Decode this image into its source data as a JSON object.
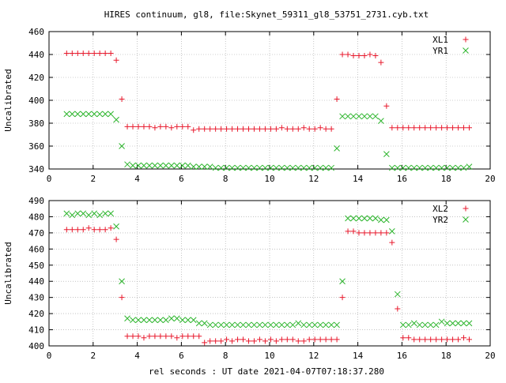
{
  "title": "HIRES continuum, gl8, file:Skynet_59311_gl8_53751_2731.cyb.txt",
  "xlabel": "rel seconds : UT date 2021-04-07T07:18:37.280",
  "colors": {
    "red": "#e8192c",
    "green": "#2db52d",
    "axis": "#000000",
    "grid": "#a0a0a0"
  },
  "chart_data": [
    {
      "type": "scatter",
      "ylabel": "Uncalibrated",
      "xlim": [
        0,
        20
      ],
      "ylim": [
        340,
        460
      ],
      "xticks": [
        0,
        2,
        4,
        6,
        8,
        10,
        12,
        14,
        16,
        18,
        20
      ],
      "yticks": [
        340,
        360,
        380,
        400,
        420,
        440,
        460
      ],
      "grid": true,
      "legend_position": "top-right",
      "series": [
        {
          "name": "XL1",
          "color": "red",
          "marker": "plus",
          "x": [
            0.8,
            1.05,
            1.3,
            1.55,
            1.8,
            2.05,
            2.3,
            2.55,
            2.8,
            3.05,
            3.3,
            3.55,
            3.8,
            4.05,
            4.3,
            4.55,
            4.8,
            5.05,
            5.3,
            5.55,
            5.8,
            6.05,
            6.3,
            6.55,
            6.8,
            7.05,
            7.3,
            7.55,
            7.8,
            8.05,
            8.3,
            8.55,
            8.8,
            9.05,
            9.3,
            9.55,
            9.8,
            10.05,
            10.3,
            10.55,
            10.8,
            11.05,
            11.3,
            11.55,
            11.8,
            12.05,
            12.3,
            12.55,
            12.8,
            13.05,
            13.3,
            13.55,
            13.8,
            14.05,
            14.3,
            14.55,
            14.8,
            15.05,
            15.3,
            15.55,
            15.8,
            16.05,
            16.3,
            16.55,
            16.8,
            17.05,
            17.3,
            17.55,
            17.8,
            18.05,
            18.3,
            18.55,
            18.8,
            19.05
          ],
          "y": [
            441,
            441,
            441,
            441,
            441,
            441,
            441,
            441,
            441,
            435,
            401,
            377,
            377,
            377,
            377,
            377,
            376,
            377,
            377,
            376,
            377,
            377,
            377,
            374,
            375,
            375,
            375,
            375,
            375,
            375,
            375,
            375,
            375,
            375,
            375,
            375,
            375,
            375,
            375,
            376,
            375,
            375,
            375,
            376,
            375,
            375,
            376,
            375,
            375,
            401,
            440,
            440,
            439,
            439,
            439,
            440,
            439,
            433,
            395,
            376,
            376,
            376,
            376,
            376,
            376,
            376,
            376,
            376,
            376,
            376,
            376,
            376,
            376,
            376
          ]
        },
        {
          "name": "YR1",
          "color": "green",
          "marker": "cross",
          "x": [
            0.8,
            1.05,
            1.3,
            1.55,
            1.8,
            2.05,
            2.3,
            2.55,
            2.8,
            3.05,
            3.3,
            3.55,
            3.8,
            4.05,
            4.3,
            4.55,
            4.8,
            5.05,
            5.3,
            5.55,
            5.8,
            6.05,
            6.3,
            6.55,
            6.8,
            7.05,
            7.3,
            7.55,
            7.8,
            8.05,
            8.3,
            8.55,
            8.8,
            9.05,
            9.3,
            9.55,
            9.8,
            10.05,
            10.3,
            10.55,
            10.8,
            11.05,
            11.3,
            11.55,
            11.8,
            12.05,
            12.3,
            12.55,
            12.8,
            13.05,
            13.3,
            13.55,
            13.8,
            14.05,
            14.3,
            14.55,
            14.8,
            15.05,
            15.3,
            15.55,
            15.8,
            16.05,
            16.3,
            16.55,
            16.8,
            17.05,
            17.3,
            17.55,
            17.8,
            18.05,
            18.3,
            18.55,
            18.8,
            19.05
          ],
          "y": [
            388,
            388,
            388,
            388,
            388,
            388,
            388,
            388,
            388,
            383,
            360,
            344,
            343,
            343,
            343,
            343,
            343,
            343,
            343,
            343,
            343,
            343,
            343,
            342,
            342,
            342,
            342,
            341,
            341,
            341,
            341,
            341,
            341,
            341,
            341,
            341,
            341,
            341,
            341,
            341,
            341,
            341,
            341,
            341,
            341,
            341,
            341,
            341,
            341,
            358,
            386,
            386,
            386,
            386,
            386,
            386,
            386,
            382,
            353,
            341,
            341,
            341,
            341,
            341,
            341,
            341,
            341,
            341,
            341,
            341,
            341,
            341,
            341,
            342
          ]
        }
      ]
    },
    {
      "type": "scatter",
      "ylabel": "Uncalibrated",
      "xlim": [
        0,
        20
      ],
      "ylim": [
        400,
        490
      ],
      "xticks": [
        0,
        2,
        4,
        6,
        8,
        10,
        12,
        14,
        16,
        18,
        20
      ],
      "yticks": [
        400,
        410,
        420,
        430,
        440,
        450,
        460,
        470,
        480,
        490
      ],
      "grid": true,
      "legend_position": "top-right",
      "series": [
        {
          "name": "XL2",
          "color": "red",
          "marker": "plus",
          "x": [
            0.8,
            1.05,
            1.3,
            1.55,
            1.8,
            2.05,
            2.3,
            2.55,
            2.8,
            3.05,
            3.3,
            3.55,
            3.8,
            4.05,
            4.3,
            4.55,
            4.8,
            5.05,
            5.3,
            5.55,
            5.8,
            6.05,
            6.3,
            6.55,
            6.8,
            7.05,
            7.3,
            7.55,
            7.8,
            8.05,
            8.3,
            8.55,
            8.8,
            9.05,
            9.3,
            9.55,
            9.8,
            10.05,
            10.3,
            10.55,
            10.8,
            11.05,
            11.3,
            11.55,
            11.8,
            12.05,
            12.3,
            12.55,
            12.8,
            13.05,
            13.3,
            13.55,
            13.8,
            14.05,
            14.3,
            14.55,
            14.8,
            15.05,
            15.3,
            15.55,
            15.8,
            16.05,
            16.3,
            16.55,
            16.8,
            17.05,
            17.3,
            17.55,
            17.8,
            18.05,
            18.3,
            18.55,
            18.8,
            19.05
          ],
          "y": [
            472,
            472,
            472,
            472,
            473,
            472,
            472,
            472,
            473,
            466,
            430,
            406,
            406,
            406,
            405,
            406,
            406,
            406,
            406,
            406,
            405,
            406,
            406,
            406,
            406,
            402,
            403,
            403,
            403,
            404,
            403,
            404,
            404,
            403,
            403,
            404,
            403,
            404,
            403,
            404,
            404,
            404,
            403,
            403,
            404,
            404,
            404,
            404,
            404,
            404,
            430,
            471,
            471,
            470,
            470,
            470,
            470,
            470,
            470,
            464,
            423,
            405,
            405,
            404,
            404,
            404,
            404,
            404,
            404,
            404,
            404,
            404,
            405,
            404
          ]
        },
        {
          "name": "YR2",
          "color": "green",
          "marker": "cross",
          "x": [
            0.8,
            1.05,
            1.3,
            1.55,
            1.8,
            2.05,
            2.3,
            2.55,
            2.8,
            3.05,
            3.3,
            3.55,
            3.8,
            4.05,
            4.3,
            4.55,
            4.8,
            5.05,
            5.3,
            5.55,
            5.8,
            6.05,
            6.3,
            6.55,
            6.8,
            7.05,
            7.3,
            7.55,
            7.8,
            8.05,
            8.3,
            8.55,
            8.8,
            9.05,
            9.3,
            9.55,
            9.8,
            10.05,
            10.3,
            10.55,
            10.8,
            11.05,
            11.3,
            11.55,
            11.8,
            12.05,
            12.3,
            12.55,
            12.8,
            13.05,
            13.3,
            13.55,
            13.8,
            14.05,
            14.3,
            14.55,
            14.8,
            15.05,
            15.3,
            15.55,
            15.8,
            16.05,
            16.3,
            16.55,
            16.8,
            17.05,
            17.3,
            17.55,
            17.8,
            18.05,
            18.3,
            18.55,
            18.8,
            19.05
          ],
          "y": [
            482,
            481,
            482,
            482,
            481,
            482,
            481,
            482,
            482,
            474,
            440,
            417,
            416,
            416,
            416,
            416,
            416,
            416,
            416,
            417,
            417,
            416,
            416,
            416,
            414,
            414,
            413,
            413,
            413,
            413,
            413,
            413,
            413,
            413,
            413,
            413,
            413,
            413,
            413,
            413,
            413,
            413,
            414,
            413,
            413,
            413,
            413,
            413,
            413,
            413,
            440,
            479,
            479,
            479,
            479,
            479,
            479,
            478,
            478,
            471,
            432,
            413,
            413,
            414,
            413,
            413,
            413,
            413,
            415,
            414,
            414,
            414,
            414,
            414
          ]
        }
      ]
    }
  ]
}
